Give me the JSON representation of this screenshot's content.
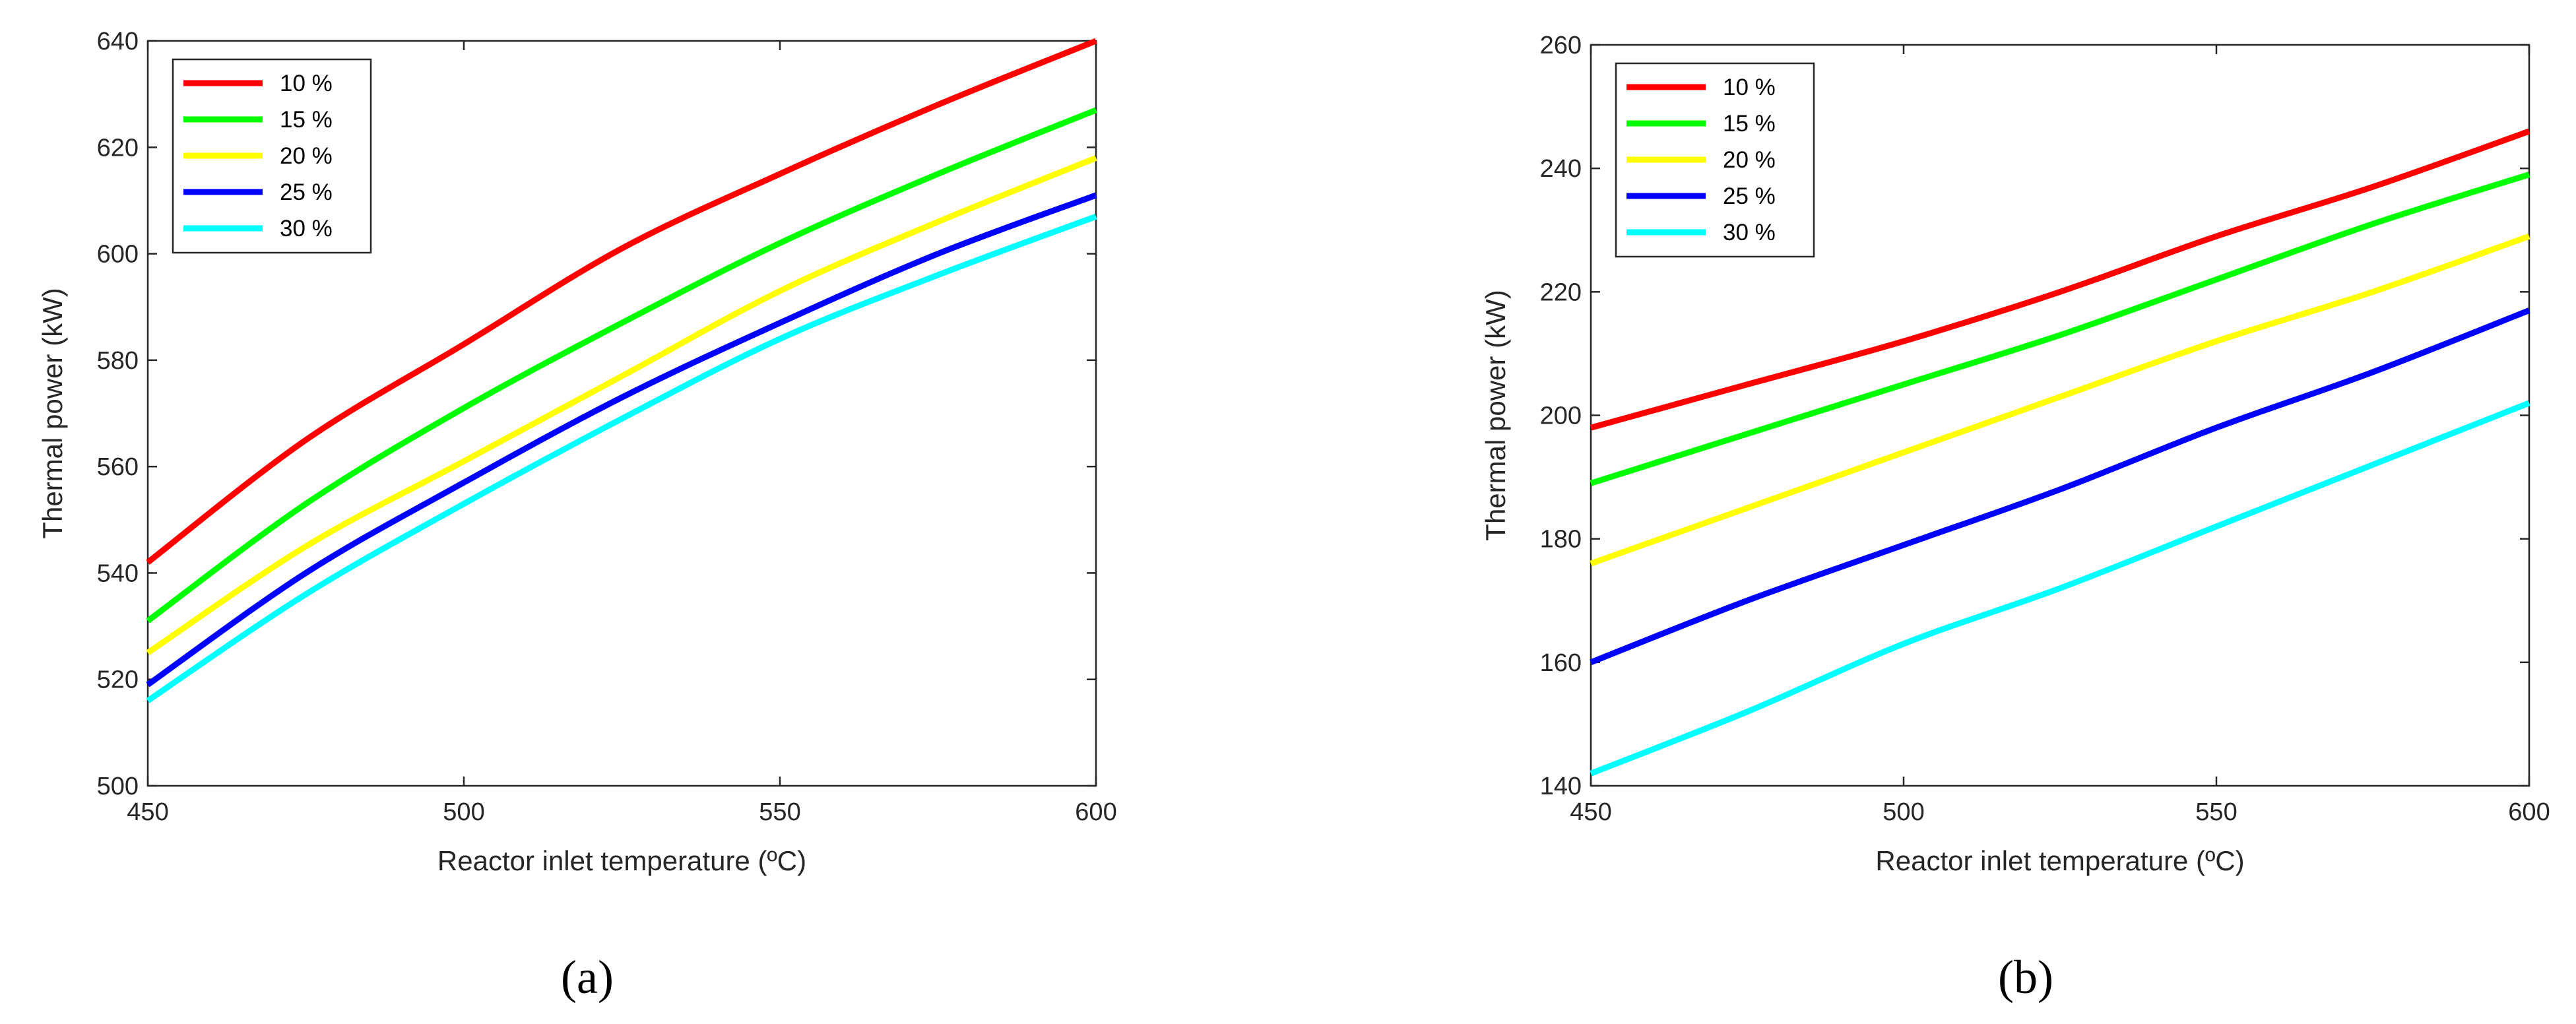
{
  "chart_data": [
    {
      "type": "line",
      "panel_label": "(a)",
      "title": "",
      "xlabel": "Reactor inlet temperature (ºC)",
      "ylabel": "Thermal power (kW)",
      "xlim": [
        450,
        600
      ],
      "ylim": [
        500,
        640
      ],
      "xticks": [
        450,
        500,
        550,
        600
      ],
      "yticks": [
        500,
        520,
        540,
        560,
        580,
        600,
        620,
        640
      ],
      "grid": false,
      "legend_position": "top-left",
      "x": [
        450,
        475,
        500,
        525,
        550,
        575,
        600
      ],
      "series": [
        {
          "name": "10 %",
          "color": "#ff0000",
          "values": [
            542,
            565,
            583,
            601,
            615,
            628,
            640
          ]
        },
        {
          "name": "15 %",
          "color": "#00ff00",
          "values": [
            531,
            553,
            571,
            587,
            602,
            615,
            627
          ]
        },
        {
          "name": "20 %",
          "color": "#ffff00",
          "values": [
            525,
            545,
            561,
            577,
            593,
            606,
            618
          ]
        },
        {
          "name": "25 %",
          "color": "#0000ff",
          "values": [
            519,
            540,
            557,
            573,
            587,
            600,
            611
          ]
        },
        {
          "name": "30 %",
          "color": "#00ffff",
          "values": [
            516,
            536,
            553,
            569,
            584,
            596,
            607
          ]
        }
      ]
    },
    {
      "type": "line",
      "panel_label": "(b)",
      "title": "",
      "xlabel": "Reactor inlet temperature (ºC)",
      "ylabel": "Thermal power (kW)",
      "xlim": [
        450,
        600
      ],
      "ylim": [
        140,
        260
      ],
      "xticks": [
        450,
        500,
        550,
        600
      ],
      "yticks": [
        140,
        160,
        180,
        200,
        220,
        240,
        260
      ],
      "grid": false,
      "legend_position": "top-left",
      "x": [
        450,
        475,
        500,
        525,
        550,
        575,
        600
      ],
      "series": [
        {
          "name": "10 %",
          "color": "#ff0000",
          "values": [
            198,
            205,
            212,
            220,
            229,
            237,
            246
          ]
        },
        {
          "name": "15 %",
          "color": "#00ff00",
          "values": [
            189,
            197,
            205,
            213,
            222,
            231,
            239
          ]
        },
        {
          "name": "20 %",
          "color": "#ffff00",
          "values": [
            176,
            185,
            194,
            203,
            212,
            220,
            229
          ]
        },
        {
          "name": "25 %",
          "color": "#0000ff",
          "values": [
            160,
            170,
            179,
            188,
            198,
            207,
            217
          ]
        },
        {
          "name": "30 %",
          "color": "#00ffff",
          "values": [
            142,
            152,
            163,
            172,
            182,
            192,
            202
          ]
        }
      ]
    }
  ]
}
